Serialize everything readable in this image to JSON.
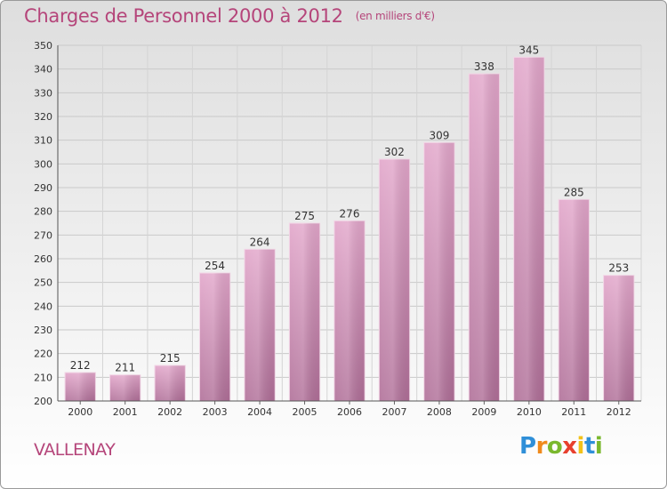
{
  "chart_data": {
    "type": "bar",
    "title": "Charges de Personnel 2000 à 2012",
    "subtitle": "(en milliers d'€)",
    "categories": [
      "2000",
      "2001",
      "2002",
      "2003",
      "2004",
      "2005",
      "2006",
      "2007",
      "2008",
      "2009",
      "2010",
      "2011",
      "2012"
    ],
    "values": [
      212,
      211,
      215,
      254,
      264,
      275,
      276,
      302,
      309,
      338,
      345,
      285,
      253
    ],
    "ylim": [
      200,
      350
    ],
    "yticks": [
      200,
      210,
      220,
      230,
      240,
      250,
      260,
      270,
      280,
      290,
      300,
      310,
      320,
      330,
      340,
      350
    ],
    "grid": true,
    "bar_color": "#d98fb9"
  },
  "place_name": "VALLENAY",
  "logo": {
    "letters": [
      "P",
      "r",
      "o",
      "x",
      "i",
      "t",
      "i"
    ],
    "colors": [
      "#2f8fd8",
      "#f08a1c",
      "#7ab82e",
      "#e8402e",
      "#f2c21a",
      "#2f8fd8",
      "#7ab82e"
    ]
  }
}
